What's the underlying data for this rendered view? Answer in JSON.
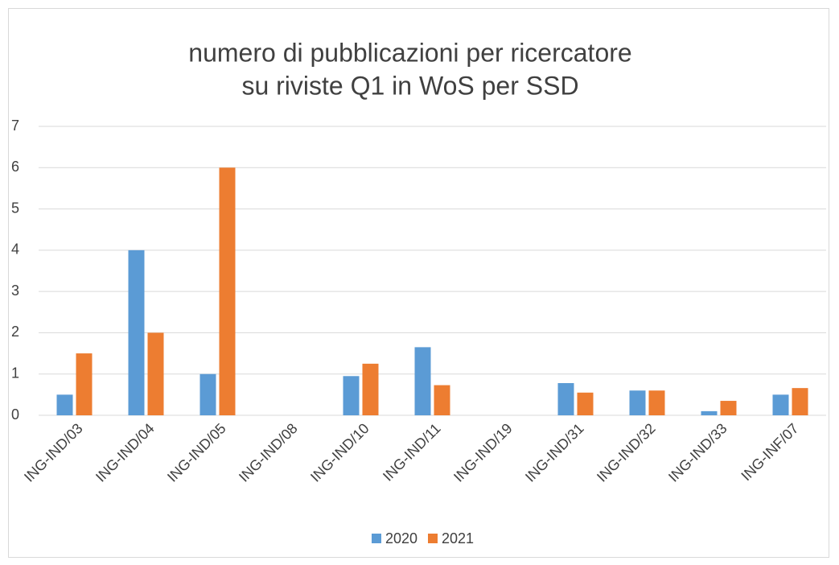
{
  "chart_data": {
    "type": "bar",
    "title": [
      "numero di pubblicazioni per ricercatore",
      "su riviste Q1 in WoS per SSD"
    ],
    "categories": [
      "ING-IND/03",
      "ING-IND/04",
      "ING-IND/05",
      "ING-IND/08",
      "ING-IND/10",
      "ING-IND/11",
      "ING-IND/19",
      "ING-IND/31",
      "ING-IND/32",
      "ING-IND/33",
      "ING-INF/07"
    ],
    "series": [
      {
        "name": "2020",
        "color": "#5b9bd5",
        "values": [
          0.5,
          4,
          1,
          0,
          0.95,
          1.65,
          0,
          0.78,
          0.6,
          0.1,
          0.5
        ]
      },
      {
        "name": "2021",
        "color": "#ed7d31",
        "values": [
          1.5,
          2,
          6,
          0,
          1.25,
          0.73,
          0,
          0.55,
          0.6,
          0.35,
          0.66
        ]
      }
    ],
    "ylim": [
      0,
      7
    ],
    "yticks": [
      0,
      1,
      2,
      3,
      4,
      5,
      6,
      7
    ],
    "grid": true,
    "legend": "bottom"
  }
}
